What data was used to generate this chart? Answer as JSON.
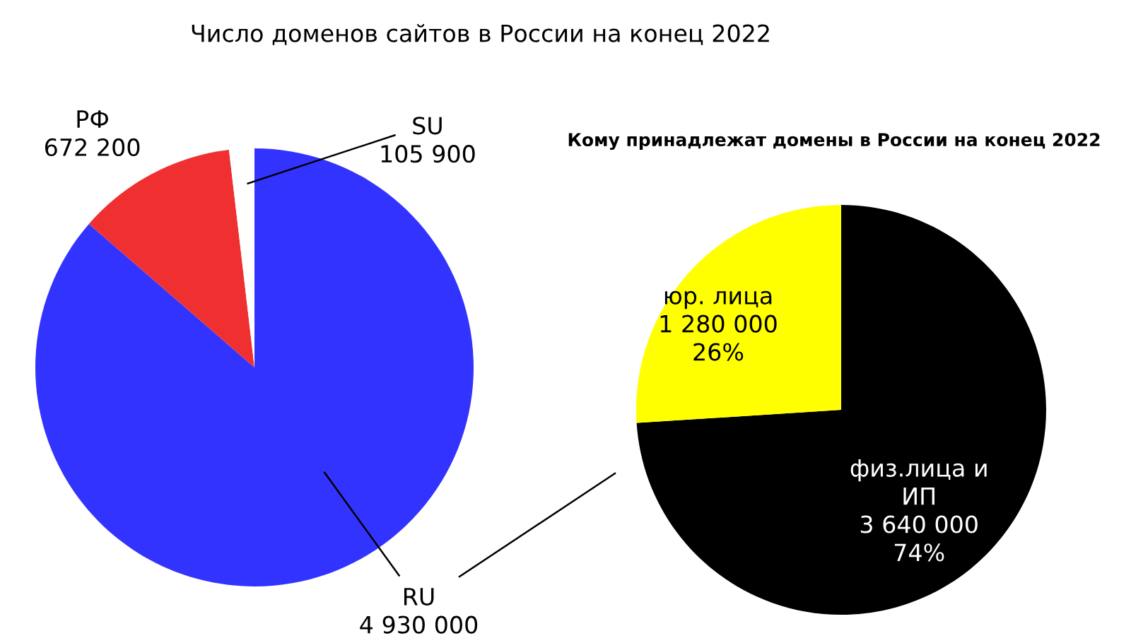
{
  "chart_data": [
    {
      "type": "pie",
      "title": "Число доменов сайтов в России на конец 2022",
      "categories": [
        "RU",
        "РФ",
        "SU"
      ],
      "values": [
        4930000,
        672200,
        105900
      ],
      "colors": [
        "#3333ff",
        "#f03030",
        "#ffffff"
      ],
      "value_labels": [
        "4 930 000",
        "672 200",
        "105 900"
      ]
    },
    {
      "type": "pie",
      "title": "Кому принадлежат домены в России на конец 2022",
      "categories": [
        "физ.лица и\nИП",
        "юр. лица"
      ],
      "values": [
        3640000,
        1280000
      ],
      "colors": [
        "#000000",
        "#ffff00"
      ],
      "value_labels": [
        "3 640 000\n74%",
        "1 280 000\n26%"
      ]
    }
  ]
}
